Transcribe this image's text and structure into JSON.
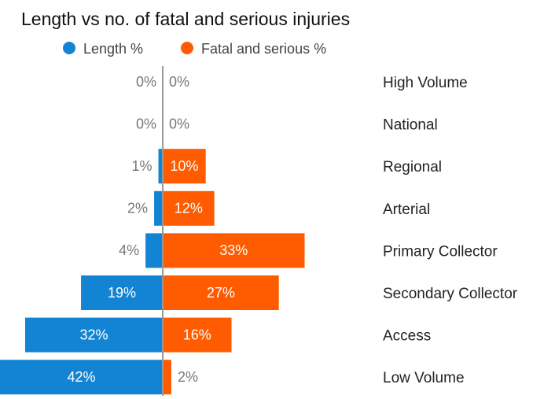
{
  "chart_data": {
    "type": "butterfly",
    "title": "Length vs no. of fatal and serious injuries",
    "categories": [
      "High Volume",
      "National",
      "Regional",
      "Arterial",
      "Primary Collector",
      "Secondary Collector",
      "Access",
      "Low Volume"
    ],
    "series": [
      {
        "name": "Length %",
        "color": "#1384d3",
        "values": [
          0,
          0,
          1,
          2,
          4,
          19,
          32,
          42
        ],
        "value_labels": [
          "0%",
          "0%",
          "1%",
          "2%",
          "4%",
          "19%",
          "32%",
          "42%"
        ]
      },
      {
        "name": "Fatal and serious %",
        "color": "#ff5b00",
        "values": [
          0,
          0,
          10,
          12,
          33,
          27,
          16,
          2
        ],
        "value_labels": [
          "0%",
          "0%",
          "10%",
          "12%",
          "33%",
          "27%",
          "16%",
          "2%"
        ]
      }
    ]
  }
}
